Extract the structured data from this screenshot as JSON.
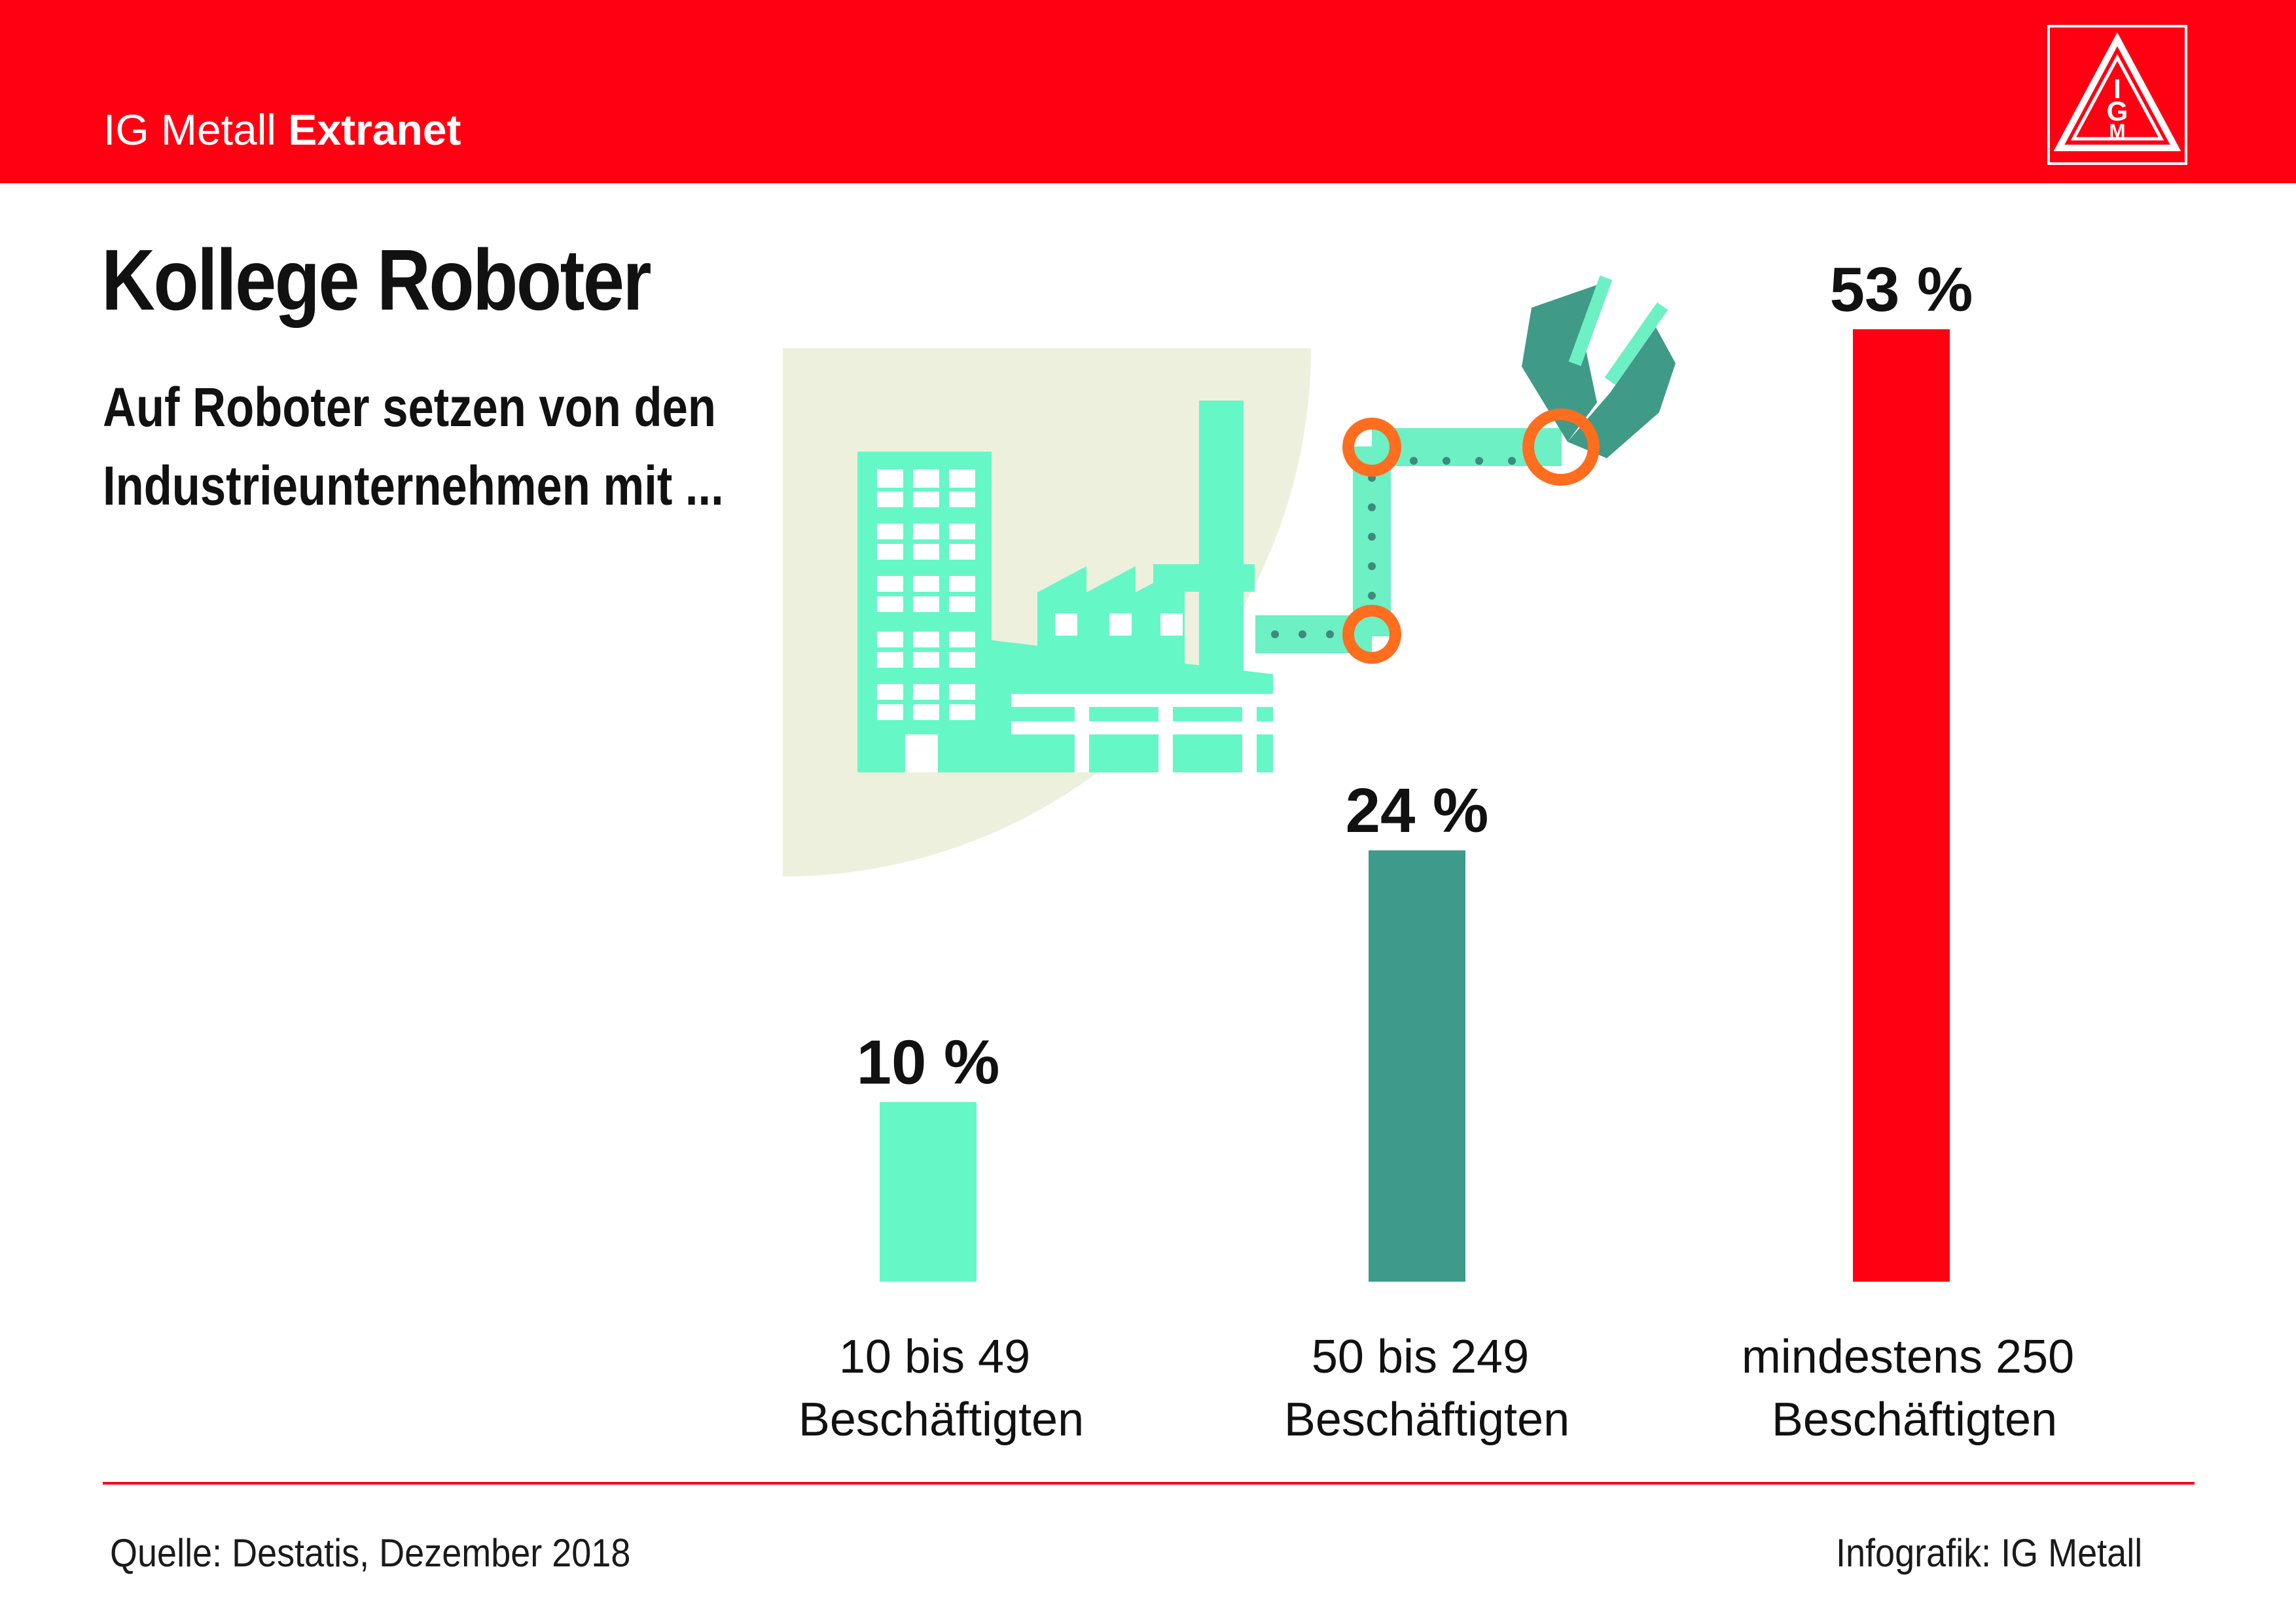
{
  "header": {
    "brand_regular": "IG Metall",
    "brand_bold": "Extranet",
    "logo_icon": "ig-metall-logo-icon",
    "logo_letters": [
      "I",
      "G",
      "M"
    ],
    "background_color": "#ff0013"
  },
  "chart_data": {
    "type": "bar",
    "title": "Kollege Roboter",
    "subtitle": "Auf Roboter setzen von den Industrieunternehmen mit ...",
    "categories": [
      "10 bis 49 Beschäftigten",
      "50 bis 249 Beschäftigten",
      "mindestens 250 Beschäftigten"
    ],
    "category_lines": [
      [
        "10 bis 49",
        "Beschäftigten"
      ],
      [
        "50 bis 249",
        "Beschäftigten"
      ],
      [
        "mindestens 250",
        "Beschäftigten"
      ]
    ],
    "values": [
      10,
      24,
      53
    ],
    "value_labels": [
      "10 %",
      "24 %",
      "53 %"
    ],
    "unit": "%",
    "colors": [
      "#66f7c7",
      "#3e9a8a",
      "#ff0013"
    ],
    "ylim": [
      0,
      53
    ],
    "grid": false,
    "legend": "none"
  },
  "illustration": {
    "icon": "factory-robot-arm-icon",
    "colors": {
      "backdrop": "#edf0dd",
      "factory": "#66f7c7",
      "arm": "#6cf0c4",
      "joint": "#ff6d1f",
      "gripper": "#3f9a88"
    }
  },
  "footer": {
    "source": "Quelle: Destatis, Dezember 2018",
    "credit": "Infografik: IG Metall",
    "rule_color": "#ff0013"
  }
}
